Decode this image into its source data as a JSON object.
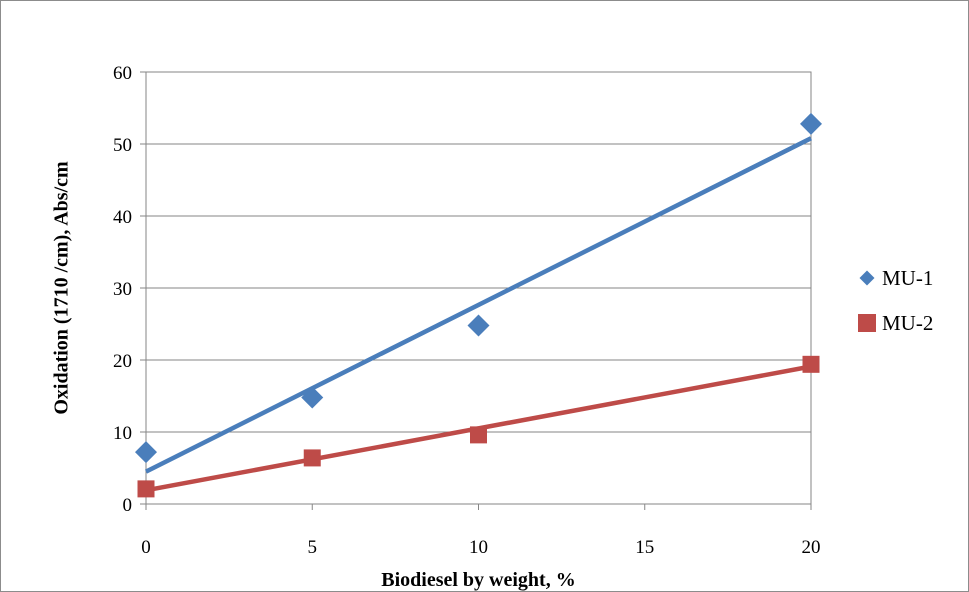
{
  "chart_data": {
    "type": "scatter",
    "title": "",
    "xlabel": "Biodiesel by weight, %",
    "ylabel": "Oxidation  (1710 /cm), Abs/cm",
    "xlim": [
      0,
      20
    ],
    "ylim": [
      0,
      60
    ],
    "x_ticks": [
      0,
      5,
      10,
      15,
      20
    ],
    "y_ticks": [
      0,
      10,
      20,
      30,
      40,
      50,
      60
    ],
    "grid": "horizontal",
    "legend_position": "right",
    "series": [
      {
        "name": "MU-1",
        "marker": "diamond",
        "color": "#4a7ebb",
        "points": [
          [
            0,
            7.2
          ],
          [
            5,
            14.8
          ],
          [
            10,
            24.8
          ],
          [
            20,
            52.8
          ]
        ],
        "trendline": {
          "type": "linear",
          "from": [
            0,
            4.5
          ],
          "to": [
            20,
            50.8
          ]
        }
      },
      {
        "name": "MU-2",
        "marker": "square",
        "color": "#be4b48",
        "points": [
          [
            0,
            2.1
          ],
          [
            5,
            6.4
          ],
          [
            10,
            9.6
          ],
          [
            20,
            19.4
          ]
        ],
        "trendline": {
          "type": "linear",
          "from": [
            0,
            1.9
          ],
          "to": [
            20,
            19.1
          ]
        }
      }
    ]
  }
}
